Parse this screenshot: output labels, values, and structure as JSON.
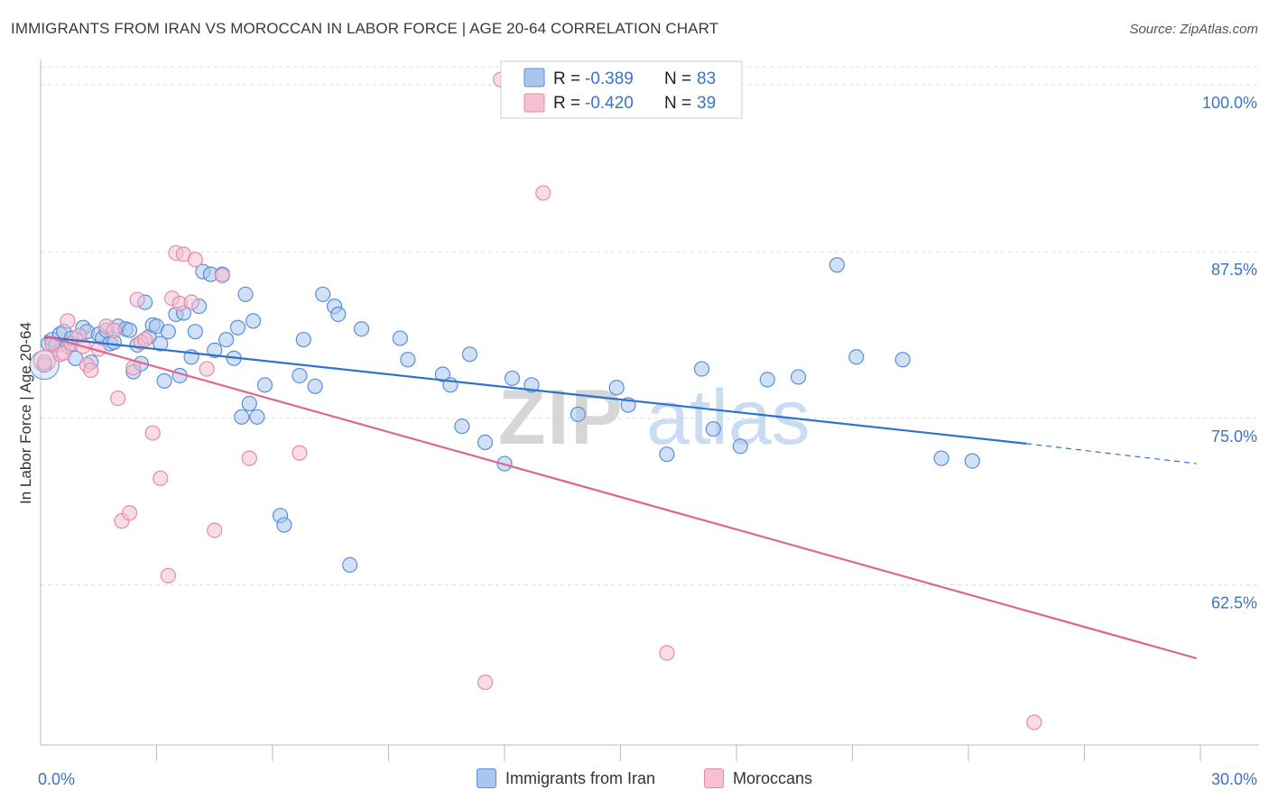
{
  "title": "IMMIGRANTS FROM IRAN VS MOROCCAN IN LABOR FORCE | AGE 20-64 CORRELATION CHART",
  "source": "Source: ZipAtlas.com",
  "watermark": {
    "zip": "ZIP",
    "atlas": "atlas"
  },
  "colors": {
    "blue_fill": "#a9c7ee",
    "blue_stroke": "#5b8fd6",
    "blue_line": "#2f72cc",
    "pink_fill": "#f6bfd2",
    "pink_stroke": "#e48aab",
    "pink_line": "#e0658f",
    "tick_label": "#3a73c8",
    "grid": "#dddddd"
  },
  "legend_top": [
    {
      "r_label": "R =",
      "r_value": "-0.389",
      "n_label": "N =",
      "n_value": "83",
      "series": "blue"
    },
    {
      "r_label": "R =",
      "r_value": "-0.420",
      "n_label": "N =",
      "n_value": "39",
      "series": "pink"
    }
  ],
  "legend_bottom": [
    {
      "label": "Immigrants from Iran",
      "series": "blue"
    },
    {
      "label": "Moroccans",
      "series": "pink"
    }
  ],
  "chart_data": {
    "type": "scatter",
    "title": "IMMIGRANTS FROM IRAN VS MOROCCAN IN LABOR FORCE | AGE 20-64 CORRELATION CHART",
    "xlabel": "",
    "ylabel": "In Labor Force | Age 20-64",
    "xlim": [
      0,
      30
    ],
    "ylim": [
      50.5,
      101.5
    ],
    "x_tick_labels": [
      {
        "value": 0,
        "label": "0.0%"
      },
      {
        "value": 30,
        "label": "30.0%"
      }
    ],
    "y_tick_labels": [
      {
        "value": 100,
        "label": "100.0%"
      },
      {
        "value": 87.5,
        "label": "87.5%"
      },
      {
        "value": 75,
        "label": "75.0%"
      },
      {
        "value": 62.5,
        "label": "62.5%"
      }
    ],
    "x_minor_ticks": [
      3,
      6,
      9,
      12,
      15,
      18,
      21,
      24,
      27,
      30
    ],
    "grid": true,
    "legend_position": "top-center",
    "series": [
      {
        "name": "Immigrants from Iran",
        "color": "blue",
        "trend": {
          "x0": 0.1,
          "y0": 81.1,
          "x1": 25.5,
          "y1": 73.1,
          "dash_to_x": 29.9,
          "dash_to_y": 71.6
        },
        "points": [
          [
            0.1,
            79.0
          ],
          [
            0.2,
            80.6
          ],
          [
            0.3,
            80.9
          ],
          [
            0.4,
            80.5
          ],
          [
            0.5,
            81.3
          ],
          [
            0.6,
            81.5
          ],
          [
            0.7,
            80.4
          ],
          [
            0.8,
            81.0
          ],
          [
            0.9,
            79.5
          ],
          [
            1.1,
            81.8
          ],
          [
            1.2,
            81.5
          ],
          [
            1.3,
            79.2
          ],
          [
            1.5,
            81.3
          ],
          [
            1.6,
            81.0
          ],
          [
            1.7,
            81.6
          ],
          [
            1.8,
            80.6
          ],
          [
            1.9,
            80.7
          ],
          [
            2.0,
            81.9
          ],
          [
            2.2,
            81.7
          ],
          [
            2.3,
            81.6
          ],
          [
            2.4,
            78.5
          ],
          [
            2.5,
            80.5
          ],
          [
            2.6,
            79.1
          ],
          [
            2.7,
            83.7
          ],
          [
            2.8,
            81.1
          ],
          [
            2.9,
            82.0
          ],
          [
            3.0,
            81.9
          ],
          [
            3.1,
            80.6
          ],
          [
            3.2,
            77.8
          ],
          [
            3.3,
            81.5
          ],
          [
            3.5,
            82.8
          ],
          [
            3.6,
            78.2
          ],
          [
            3.7,
            82.9
          ],
          [
            3.9,
            79.6
          ],
          [
            4.0,
            81.5
          ],
          [
            4.1,
            83.4
          ],
          [
            4.2,
            86.0
          ],
          [
            4.4,
            85.8
          ],
          [
            4.5,
            80.1
          ],
          [
            4.7,
            85.8
          ],
          [
            4.8,
            80.9
          ],
          [
            5.0,
            79.5
          ],
          [
            5.1,
            81.8
          ],
          [
            5.2,
            75.1
          ],
          [
            5.3,
            84.3
          ],
          [
            5.4,
            76.1
          ],
          [
            5.5,
            82.3
          ],
          [
            5.6,
            75.1
          ],
          [
            5.8,
            77.5
          ],
          [
            6.2,
            67.7
          ],
          [
            6.8,
            80.9
          ],
          [
            6.7,
            78.2
          ],
          [
            7.1,
            77.4
          ],
          [
            7.3,
            84.3
          ],
          [
            7.6,
            83.4
          ],
          [
            7.7,
            82.8
          ],
          [
            8.0,
            64.0
          ],
          [
            8.3,
            81.7
          ],
          [
            9.3,
            81.0
          ],
          [
            9.5,
            79.4
          ],
          [
            10.4,
            78.3
          ],
          [
            10.6,
            77.5
          ],
          [
            10.9,
            74.4
          ],
          [
            11.1,
            79.8
          ],
          [
            11.5,
            73.2
          ],
          [
            12.0,
            71.6
          ],
          [
            12.2,
            78.0
          ],
          [
            12.7,
            77.5
          ],
          [
            13.9,
            75.3
          ],
          [
            14.9,
            77.3
          ],
          [
            15.2,
            76.0
          ],
          [
            16.2,
            72.3
          ],
          [
            17.1,
            78.7
          ],
          [
            17.4,
            74.2
          ],
          [
            18.1,
            72.9
          ],
          [
            18.8,
            77.9
          ],
          [
            19.6,
            78.1
          ],
          [
            20.6,
            86.5
          ],
          [
            21.1,
            79.6
          ],
          [
            22.3,
            79.4
          ],
          [
            23.3,
            72.0
          ],
          [
            24.1,
            71.8
          ],
          [
            6.3,
            67.0
          ]
        ]
      },
      {
        "name": "Moroccans",
        "color": "pink",
        "trend": {
          "x0": 0.1,
          "y0": 81.2,
          "x1": 29.9,
          "y1": 57.0
        },
        "points": [
          [
            0.1,
            79.2
          ],
          [
            0.3,
            80.6
          ],
          [
            0.5,
            79.8
          ],
          [
            0.6,
            79.9
          ],
          [
            0.7,
            82.3
          ],
          [
            0.8,
            80.6
          ],
          [
            1.0,
            81.2
          ],
          [
            1.1,
            80.4
          ],
          [
            1.2,
            79.0
          ],
          [
            1.3,
            78.6
          ],
          [
            1.5,
            80.2
          ],
          [
            1.7,
            81.9
          ],
          [
            1.9,
            81.6
          ],
          [
            2.0,
            76.5
          ],
          [
            2.1,
            67.3
          ],
          [
            2.3,
            67.9
          ],
          [
            2.4,
            78.8
          ],
          [
            2.5,
            83.9
          ],
          [
            2.6,
            80.7
          ],
          [
            2.7,
            80.9
          ],
          [
            2.9,
            73.9
          ],
          [
            3.1,
            70.5
          ],
          [
            3.3,
            63.2
          ],
          [
            3.4,
            84.0
          ],
          [
            3.5,
            87.4
          ],
          [
            3.6,
            83.6
          ],
          [
            3.7,
            87.3
          ],
          [
            3.9,
            83.7
          ],
          [
            4.0,
            86.9
          ],
          [
            4.3,
            78.7
          ],
          [
            4.5,
            66.6
          ],
          [
            4.7,
            85.7
          ],
          [
            5.4,
            72.0
          ],
          [
            6.7,
            72.4
          ],
          [
            11.5,
            55.2
          ],
          [
            11.9,
            100.4
          ],
          [
            13.0,
            91.9
          ],
          [
            16.2,
            57.4
          ],
          [
            25.7,
            52.2
          ]
        ]
      }
    ]
  }
}
